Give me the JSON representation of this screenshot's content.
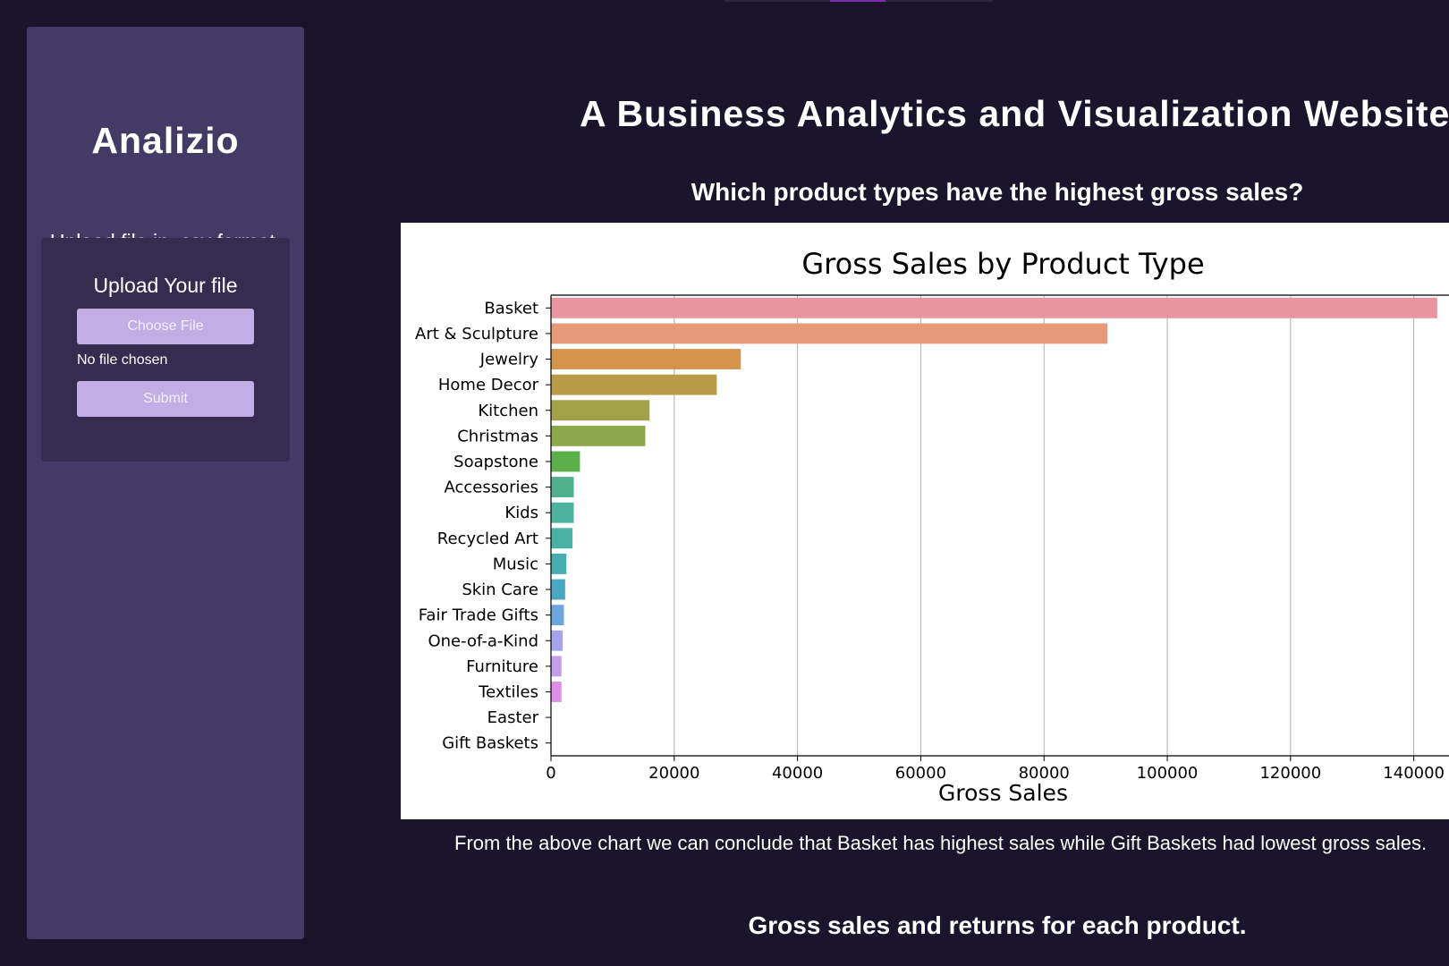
{
  "app": {
    "brand": "Analizio",
    "upload_hint": "Upload file in .csv format.",
    "upload_card_title": "Upload Your file",
    "choose_file_label": "Choose File",
    "no_file_text": "No file chosen",
    "submit_label": "Submit"
  },
  "main": {
    "title": "A Business Analytics and Visualization Website",
    "question": "Which product types have the highest gross sales?",
    "conclusion": "From the above chart we can conclude that Basket has highest sales while Gift Baskets had lowest gross sales.",
    "next_heading": "Gross sales and returns for each product."
  },
  "chart_data": {
    "type": "bar",
    "orientation": "horizontal",
    "title": "Gross Sales by Product Type",
    "xlabel": "Gross Sales",
    "ylabel": "",
    "xlim": [
      0,
      146000
    ],
    "xticks": [
      0,
      20000,
      40000,
      60000,
      80000,
      100000,
      120000,
      140000
    ],
    "grid": "vertical",
    "categories": [
      "Basket",
      "Art & Sculpture",
      "Jewelry",
      "Home Decor",
      "Kitchen",
      "Christmas",
      "Soapstone",
      "Accessories",
      "Kids",
      "Recycled Art",
      "Music",
      "Skin Care",
      "Fair Trade Gifts",
      "One-of-a-Kind",
      "Furniture",
      "Textiles",
      "Easter",
      "Gift Baskets"
    ],
    "values": [
      143800,
      90300,
      30800,
      26900,
      16000,
      15300,
      4700,
      3700,
      3700,
      3500,
      2500,
      2300,
      2100,
      1900,
      1700,
      1700,
      0,
      0
    ],
    "colors": [
      "#e9949f",
      "#e89977",
      "#d5934c",
      "#b89c48",
      "#a3a248",
      "#8da849",
      "#5bb04b",
      "#4eb08d",
      "#4db29f",
      "#4ab2a5",
      "#48adb1",
      "#49a9c4",
      "#6ba6e0",
      "#a4a4ea",
      "#c59ce9",
      "#e08de8",
      "#e890c2",
      "#e991a8"
    ]
  }
}
